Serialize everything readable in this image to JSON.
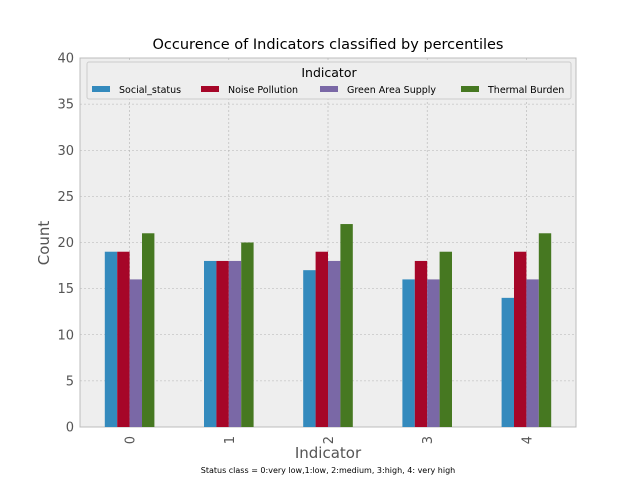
{
  "chart_data": {
    "type": "bar",
    "title": "Occurence of Indicators classified by percentiles",
    "xlabel": "Indicator",
    "ylabel": "Count",
    "caption": "Status class = 0:very low,1:low, 2:medium, 3:high, 4: very high",
    "categories": [
      "0",
      "1",
      "2",
      "3",
      "4"
    ],
    "ylim": [
      0,
      40
    ],
    "yticks": [
      "0",
      "5",
      "10",
      "15",
      "20",
      "25",
      "30",
      "35",
      "40"
    ],
    "grid": true,
    "legend": {
      "title": "Indicator",
      "placement": "top",
      "columns": 4
    },
    "series": [
      {
        "name": "Social_status",
        "color": "#348abd",
        "values": [
          19,
          18,
          17,
          16,
          14
        ]
      },
      {
        "name": "Noise Pollution",
        "color": "#a60628",
        "values": [
          19,
          18,
          19,
          18,
          19
        ]
      },
      {
        "name": "Green Area Supply",
        "color": "#7a68a6",
        "values": [
          16,
          18,
          18,
          16,
          16
        ]
      },
      {
        "name": "Thermal Burden",
        "color": "#467821",
        "values": [
          21,
          20,
          22,
          19,
          21
        ]
      }
    ]
  }
}
